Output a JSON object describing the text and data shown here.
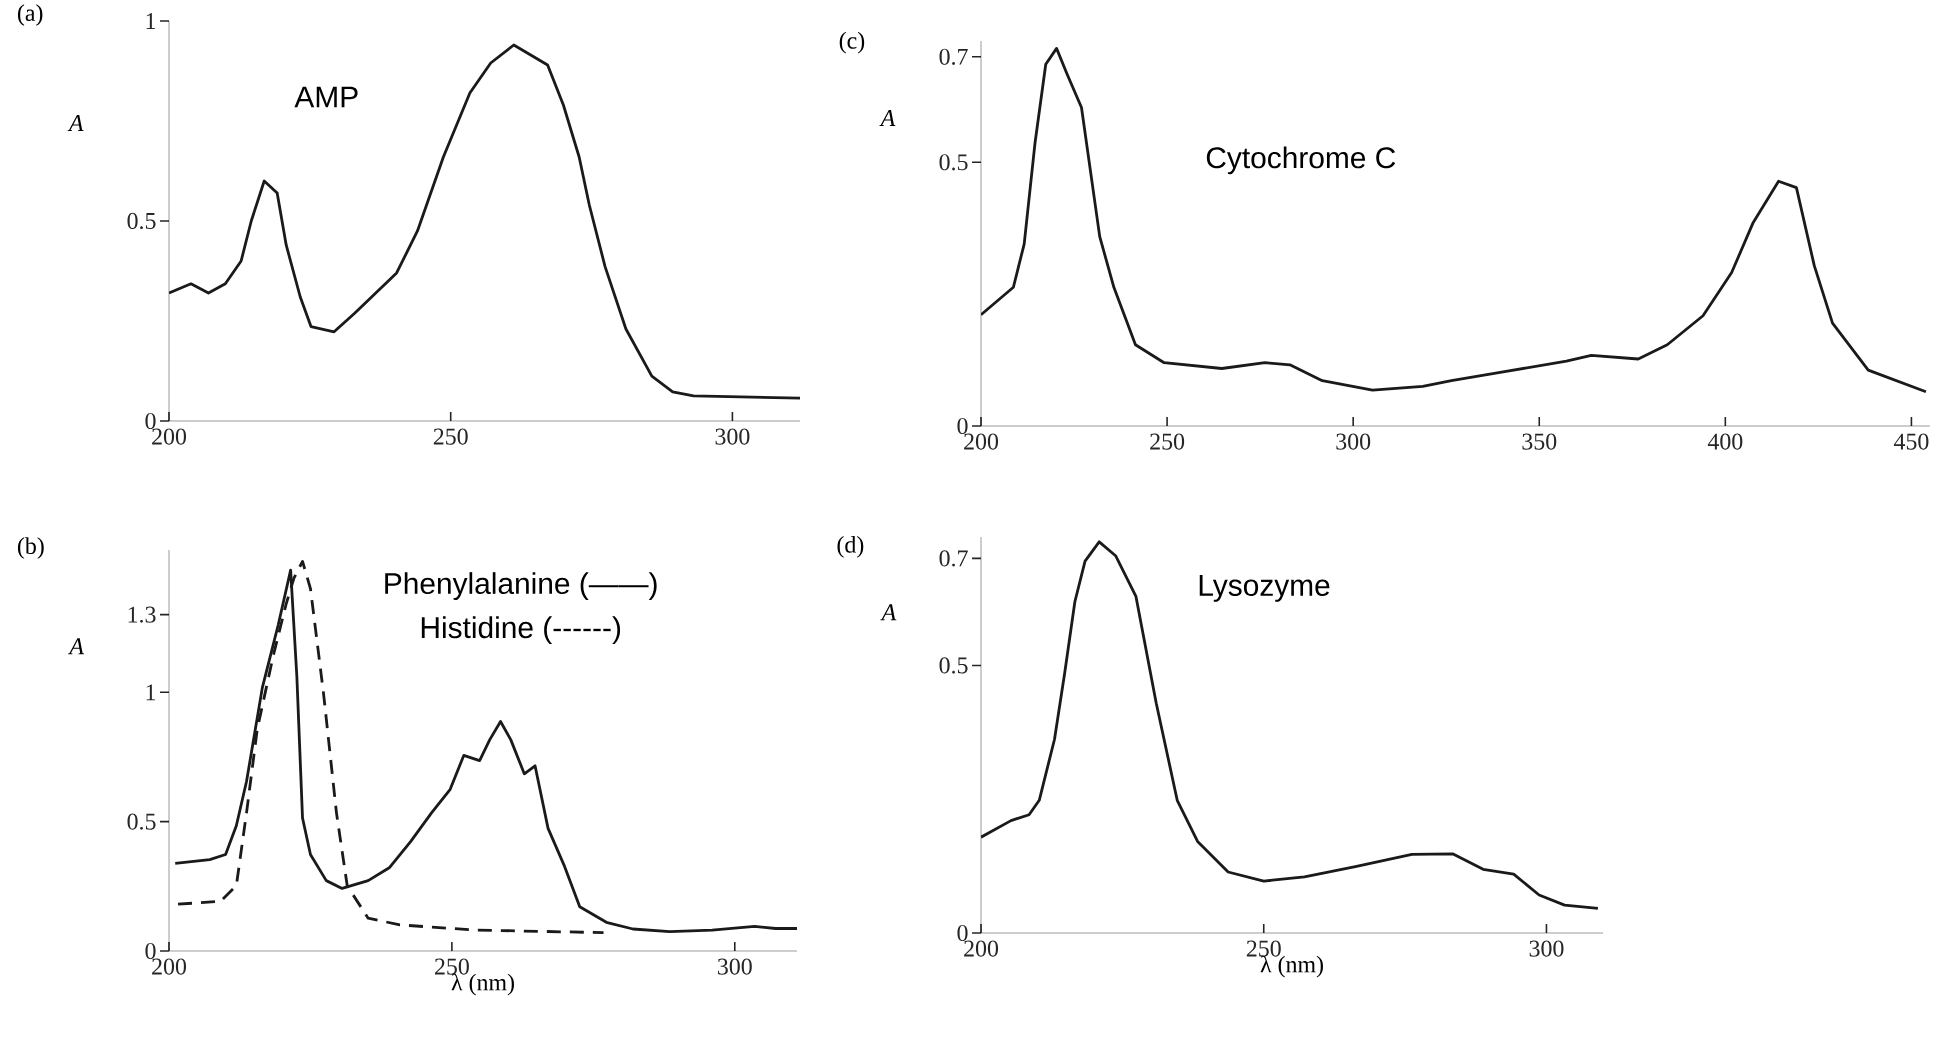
{
  "chart_data": [
    {
      "type": "line",
      "title": "(a)",
      "ylabel": "A",
      "xlim": [
        200,
        312
      ],
      "ylim": [
        0,
        1
      ],
      "xticks": [
        200,
        250,
        300
      ],
      "yticks": [
        0,
        0.5,
        1
      ],
      "annotations": [
        "AMP"
      ],
      "series": [
        {
          "color": "#1a1a1a",
          "x": [
            200,
            203.9,
            207,
            210,
            212.8,
            214.6,
            216.9,
            219.2,
            220.8,
            223.3,
            225.2,
            229.3,
            233,
            236.7,
            240.4,
            244.1,
            248.7,
            253.4,
            257.1,
            261.2,
            267.2,
            270,
            272.8,
            274.6,
            277.4,
            281.1,
            285.7,
            289.4,
            293.1,
            312
          ],
          "values": [
            0.32,
            0.343,
            0.32,
            0.343,
            0.4,
            0.5,
            0.6,
            0.57,
            0.44,
            0.31,
            0.236,
            0.223,
            0.27,
            0.32,
            0.37,
            0.475,
            0.66,
            0.82,
            0.895,
            0.94,
            0.89,
            0.79,
            0.66,
            0.54,
            0.386,
            0.23,
            0.112,
            0.073,
            0.063,
            0.057
          ]
        }
      ]
    },
    {
      "type": "line",
      "title": "(c)",
      "ylabel": "A",
      "xlim": [
        200,
        455
      ],
      "ylim": [
        0,
        0.73
      ],
      "xticks": [
        200,
        250,
        300,
        350,
        400,
        450
      ],
      "yticks": [
        0,
        0.5,
        0.7
      ],
      "annotations": [
        "Cytochrome C"
      ],
      "series": [
        {
          "color": "#1a1a1a",
          "x": [
            200,
            208.7,
            211.6,
            214.5,
            217.4,
            220.3,
            223.2,
            227,
            231.9,
            235.7,
            241.5,
            249.2,
            264.7,
            276.3,
            283,
            291.7,
            305.2,
            318.7,
            326.4,
            339.9,
            357.3,
            364,
            376.6,
            384.4,
            394,
            401.7,
            407.5,
            414.3,
            419.1,
            423.9,
            428.8,
            438.4,
            453.9
          ],
          "values": [
            0.211,
            0.263,
            0.345,
            0.536,
            0.686,
            0.716,
            0.666,
            0.604,
            0.359,
            0.263,
            0.154,
            0.12,
            0.109,
            0.12,
            0.116,
            0.086,
            0.068,
            0.075,
            0.086,
            0.102,
            0.123,
            0.134,
            0.127,
            0.154,
            0.209,
            0.291,
            0.386,
            0.464,
            0.452,
            0.304,
            0.195,
            0.106,
            0.065
          ]
        }
      ]
    },
    {
      "type": "line",
      "title": "(b)",
      "ylabel": "A",
      "xlabel": "λ (nm)",
      "xlim": [
        200,
        311
      ],
      "ylim": [
        0,
        1.55
      ],
      "xticks": [
        200,
        250,
        300
      ],
      "yticks": [
        0,
        0.5,
        1,
        1.3
      ],
      "annotations": [
        "Phenylalanine (——)",
        "Histidine (------)"
      ],
      "series": [
        {
          "color": "#1a1a1a",
          "line_style": "solid",
          "x": [
            201.1,
            207.2,
            210,
            211.9,
            213.7,
            216.5,
            219.3,
            221.5,
            222.6,
            223.6,
            225,
            227.8,
            230.6,
            235.2,
            239,
            242.7,
            246.4,
            249.7,
            252.1,
            254.9,
            256.7,
            258.6,
            260.4,
            262.8,
            264.7,
            267,
            269.8,
            272.6,
            277.3,
            282,
            288.5,
            296,
            303.5,
            307.2,
            311
          ],
          "values": [
            0.339,
            0.353,
            0.373,
            0.484,
            0.655,
            1.018,
            1.26,
            1.472,
            1.06,
            0.514,
            0.373,
            0.272,
            0.242,
            0.272,
            0.323,
            0.423,
            0.534,
            0.625,
            0.756,
            0.736,
            0.817,
            0.887,
            0.817,
            0.685,
            0.716,
            0.474,
            0.333,
            0.171,
            0.111,
            0.085,
            0.075,
            0.081,
            0.095,
            0.087,
            0.087
          ]
        },
        {
          "color": "#1a1a1a",
          "line_style": "dashed",
          "x": [
            201.6,
            209.1,
            211.9,
            213.7,
            215.6,
            218.4,
            220.7,
            222.1,
            223.6,
            225,
            227.3,
            229.6,
            231.5,
            235.2,
            240.8,
            253.9,
            276.8
          ],
          "values": [
            0.181,
            0.192,
            0.252,
            0.534,
            0.857,
            1.139,
            1.341,
            1.442,
            1.506,
            1.401,
            0.998,
            0.534,
            0.252,
            0.127,
            0.101,
            0.081,
            0.071
          ]
        }
      ]
    },
    {
      "type": "line",
      "title": "(d)",
      "ylabel": "A",
      "xlabel": "λ (nm)",
      "xlim": [
        200,
        310
      ],
      "ylim": [
        0,
        0.74
      ],
      "xticks": [
        200,
        250,
        300
      ],
      "yticks": [
        0,
        0.5,
        0.7
      ],
      "annotations": [
        "Lysozyme"
      ],
      "series": [
        {
          "color": "#1a1a1a",
          "x": [
            200,
            205.3,
            208.5,
            210.3,
            213,
            214.8,
            216.6,
            218.4,
            220.9,
            223.8,
            227.4,
            231,
            234.7,
            238.3,
            243.7,
            250,
            257.2,
            266.2,
            276.2,
            283.4,
            288.8,
            294.2,
            298.7,
            303.2,
            309.1
          ],
          "values": [
            0.179,
            0.21,
            0.221,
            0.248,
            0.362,
            0.486,
            0.619,
            0.695,
            0.731,
            0.705,
            0.629,
            0.429,
            0.248,
            0.171,
            0.114,
            0.097,
            0.105,
            0.124,
            0.147,
            0.148,
            0.119,
            0.11,
            0.071,
            0.052,
            0.046
          ]
        }
      ]
    }
  ]
}
